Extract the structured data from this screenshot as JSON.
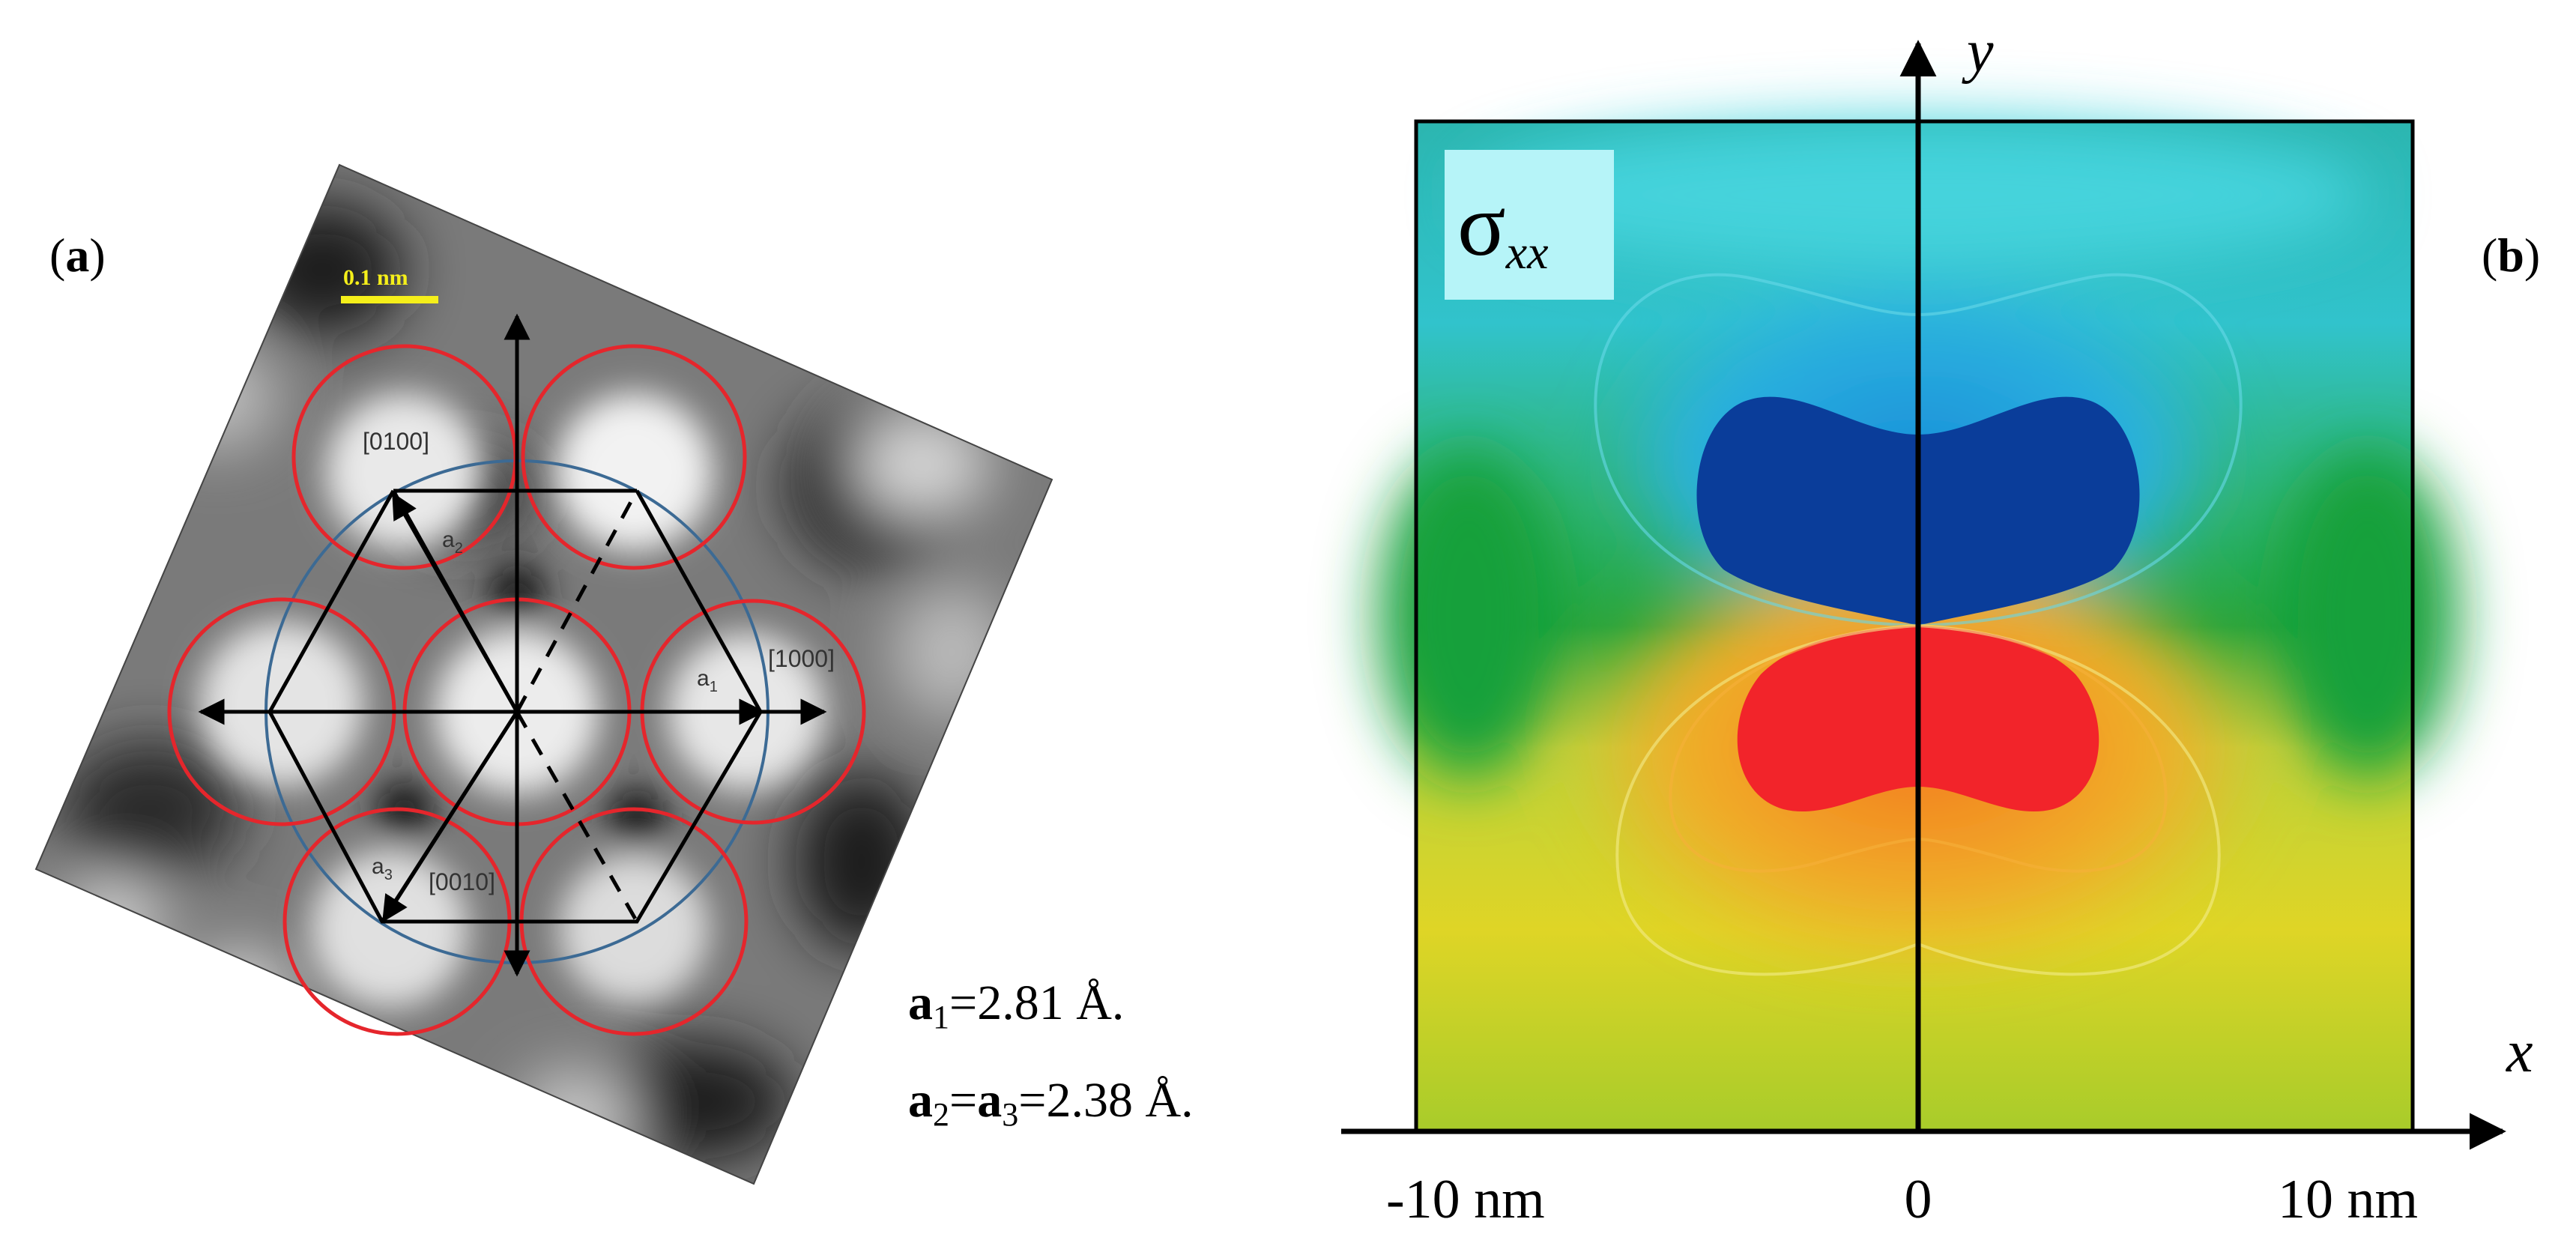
{
  "panel_a": {
    "label_open": "(",
    "label_letter": "a",
    "label_close": ")",
    "scale_bar": "0.1 nm",
    "directions": {
      "d0100": "[0100]",
      "d1000": "[1000]",
      "d0010": "[0010]"
    },
    "vectors": {
      "a1": "a",
      "a1_sub": "1",
      "a2": "a",
      "a2_sub": "2",
      "a3": "a",
      "a3_sub": "3"
    },
    "eq1": {
      "sym": "a",
      "sub": "1",
      "rest": "=2.81 Å."
    },
    "eq2": {
      "sym1": "a",
      "sub1": "2",
      "eq": "=",
      "sym2": "a",
      "sub2": "3",
      "rest": "=2.38 Å."
    },
    "colors": {
      "atom_circles": "#e5262c",
      "envelope_circle": "#3c6a94",
      "scale_bar": "#f5ef1a",
      "image_gray": "#7a7a7a"
    }
  },
  "panel_b": {
    "label_open": "(",
    "label_letter": "b",
    "label_close": ")",
    "quantity_symbol": "σ",
    "quantity_subscript": "xx",
    "x_axis_label": "x",
    "y_axis_label": "y",
    "x_ticks": [
      "-10 nm",
      "0",
      "10 nm"
    ],
    "colors": {
      "field_high": "#f2242a",
      "field_low": "#0a3d9a",
      "field_mid": "#17a73a",
      "label_box": "#b6f4f8"
    }
  }
}
